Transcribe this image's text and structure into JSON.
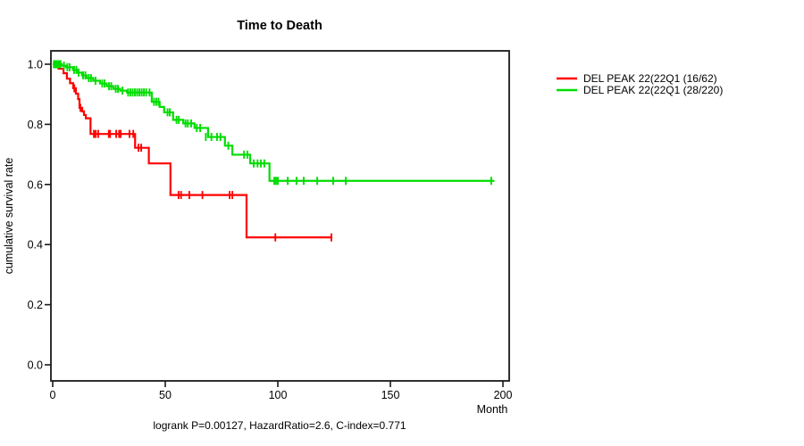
{
  "figure": {
    "title": "Time to Death",
    "x_axis_title": "Month",
    "y_axis_title": "cumulative survival rate",
    "stats_annotation": "logrank P=0.00127, HazardRatio=2.6, C-index=0.771"
  },
  "chart_data": {
    "type": "line",
    "subtype": "kaplan-meier-step",
    "title": "Time to Death",
    "xlabel": "Month",
    "ylabel": "cumulative survival rate",
    "annotation": "logrank P=0.00127, HazardRatio=2.6, C-index=0.771",
    "xlim": [
      0,
      203
    ],
    "ylim": [
      0,
      1.0
    ],
    "xticks": [
      0,
      50,
      100,
      150,
      200
    ],
    "yticks": [
      0.0,
      0.2,
      0.4,
      0.6,
      0.8,
      1.0
    ],
    "grid": false,
    "legend_position": "right-outside",
    "axis_color": "#1a1a1a",
    "series": [
      {
        "name": "DEL PEAK 22(22Q1 (16/62)",
        "color": "#ff0000",
        "end_month": 124.2,
        "steps": [
          [
            0,
            1.0
          ],
          [
            2.6,
            0.985
          ],
          [
            4.8,
            0.97
          ],
          [
            6.3,
            0.952
          ],
          [
            7.7,
            0.937
          ],
          [
            9.1,
            0.92
          ],
          [
            10.3,
            0.902
          ],
          [
            11.3,
            0.884
          ],
          [
            11.9,
            0.855
          ],
          [
            13.1,
            0.843
          ],
          [
            13.9,
            0.831
          ],
          [
            14.7,
            0.82
          ],
          [
            16.8,
            0.768
          ],
          [
            36.6,
            0.722
          ],
          [
            42.7,
            0.67
          ],
          [
            52.3,
            0.565
          ],
          [
            86.1,
            0.424
          ]
        ],
        "censors": [
          [
            1.2,
            1.0
          ],
          [
            2.0,
            1.0
          ],
          [
            9.6,
            0.92
          ],
          [
            12.3,
            0.855
          ],
          [
            18.3,
            0.768
          ],
          [
            19.1,
            0.768
          ],
          [
            20.2,
            0.768
          ],
          [
            24.9,
            0.768
          ],
          [
            25.5,
            0.768
          ],
          [
            28.2,
            0.768
          ],
          [
            29.5,
            0.768
          ],
          [
            30.2,
            0.768
          ],
          [
            34.1,
            0.768
          ],
          [
            35.8,
            0.768
          ],
          [
            38.1,
            0.722
          ],
          [
            39.3,
            0.722
          ],
          [
            55.9,
            0.565
          ],
          [
            57.0,
            0.565
          ],
          [
            60.7,
            0.565
          ],
          [
            66.5,
            0.565
          ],
          [
            78.6,
            0.565
          ],
          [
            79.8,
            0.565
          ],
          [
            98.9,
            0.424
          ],
          [
            123.8,
            0.424
          ]
        ]
      },
      {
        "name": "DEL PEAK 22(22Q1 (28/220)",
        "color": "#00dd00",
        "end_month": 196.2,
        "steps": [
          [
            0,
            1.0
          ],
          [
            4,
            0.995
          ],
          [
            6,
            0.99
          ],
          [
            9,
            0.981
          ],
          [
            11,
            0.972
          ],
          [
            13,
            0.963
          ],
          [
            15,
            0.954
          ],
          [
            18,
            0.945
          ],
          [
            21,
            0.936
          ],
          [
            24,
            0.927
          ],
          [
            27,
            0.918
          ],
          [
            30,
            0.912
          ],
          [
            33,
            0.906
          ],
          [
            44,
            0.875
          ],
          [
            47.5,
            0.858
          ],
          [
            49.5,
            0.84
          ],
          [
            53.5,
            0.815
          ],
          [
            58,
            0.803
          ],
          [
            63,
            0.788
          ],
          [
            69,
            0.758
          ],
          [
            76.5,
            0.729
          ],
          [
            79.8,
            0.699
          ],
          [
            87.7,
            0.67
          ],
          [
            96.3,
            0.612
          ]
        ],
        "censors": [
          [
            0.5,
            1.0
          ],
          [
            1.0,
            1.0
          ],
          [
            1.5,
            1.0
          ],
          [
            2.0,
            1.0
          ],
          [
            2.5,
            1.0
          ],
          [
            3.0,
            1.0
          ],
          [
            3.5,
            1.0
          ],
          [
            5,
            0.995
          ],
          [
            6.5,
            0.99
          ],
          [
            7.5,
            0.99
          ],
          [
            9.5,
            0.981
          ],
          [
            10.5,
            0.981
          ],
          [
            11.5,
            0.972
          ],
          [
            13.5,
            0.963
          ],
          [
            14.5,
            0.963
          ],
          [
            16,
            0.954
          ],
          [
            17,
            0.954
          ],
          [
            19,
            0.945
          ],
          [
            22,
            0.936
          ],
          [
            23,
            0.936
          ],
          [
            25,
            0.927
          ],
          [
            26,
            0.927
          ],
          [
            28,
            0.918
          ],
          [
            29,
            0.918
          ],
          [
            31,
            0.912
          ],
          [
            33.5,
            0.906
          ],
          [
            34.5,
            0.906
          ],
          [
            35.5,
            0.906
          ],
          [
            36.5,
            0.906
          ],
          [
            37.5,
            0.906
          ],
          [
            38.5,
            0.906
          ],
          [
            39.5,
            0.906
          ],
          [
            40.5,
            0.906
          ],
          [
            41.5,
            0.906
          ],
          [
            43,
            0.906
          ],
          [
            45,
            0.875
          ],
          [
            46,
            0.875
          ],
          [
            47,
            0.875
          ],
          [
            51,
            0.84
          ],
          [
            52,
            0.84
          ],
          [
            55,
            0.815
          ],
          [
            56,
            0.815
          ],
          [
            59,
            0.803
          ],
          [
            60,
            0.803
          ],
          [
            61.5,
            0.803
          ],
          [
            64,
            0.788
          ],
          [
            65.5,
            0.788
          ],
          [
            68,
            0.758
          ],
          [
            70.5,
            0.758
          ],
          [
            73,
            0.758
          ],
          [
            74.5,
            0.758
          ],
          [
            78,
            0.729
          ],
          [
            85,
            0.699
          ],
          [
            86.5,
            0.699
          ],
          [
            89.3,
            0.67
          ],
          [
            91,
            0.67
          ],
          [
            92.5,
            0.67
          ],
          [
            94,
            0.67
          ],
          [
            98.4,
            0.612
          ],
          [
            99.2,
            0.612
          ],
          [
            100,
            0.612
          ],
          [
            104.4,
            0.612
          ],
          [
            108.3,
            0.612
          ],
          [
            111.5,
            0.612
          ],
          [
            117.5,
            0.612
          ],
          [
            124.6,
            0.612
          ],
          [
            130.2,
            0.612
          ],
          [
            194.8,
            0.612
          ]
        ]
      }
    ]
  }
}
